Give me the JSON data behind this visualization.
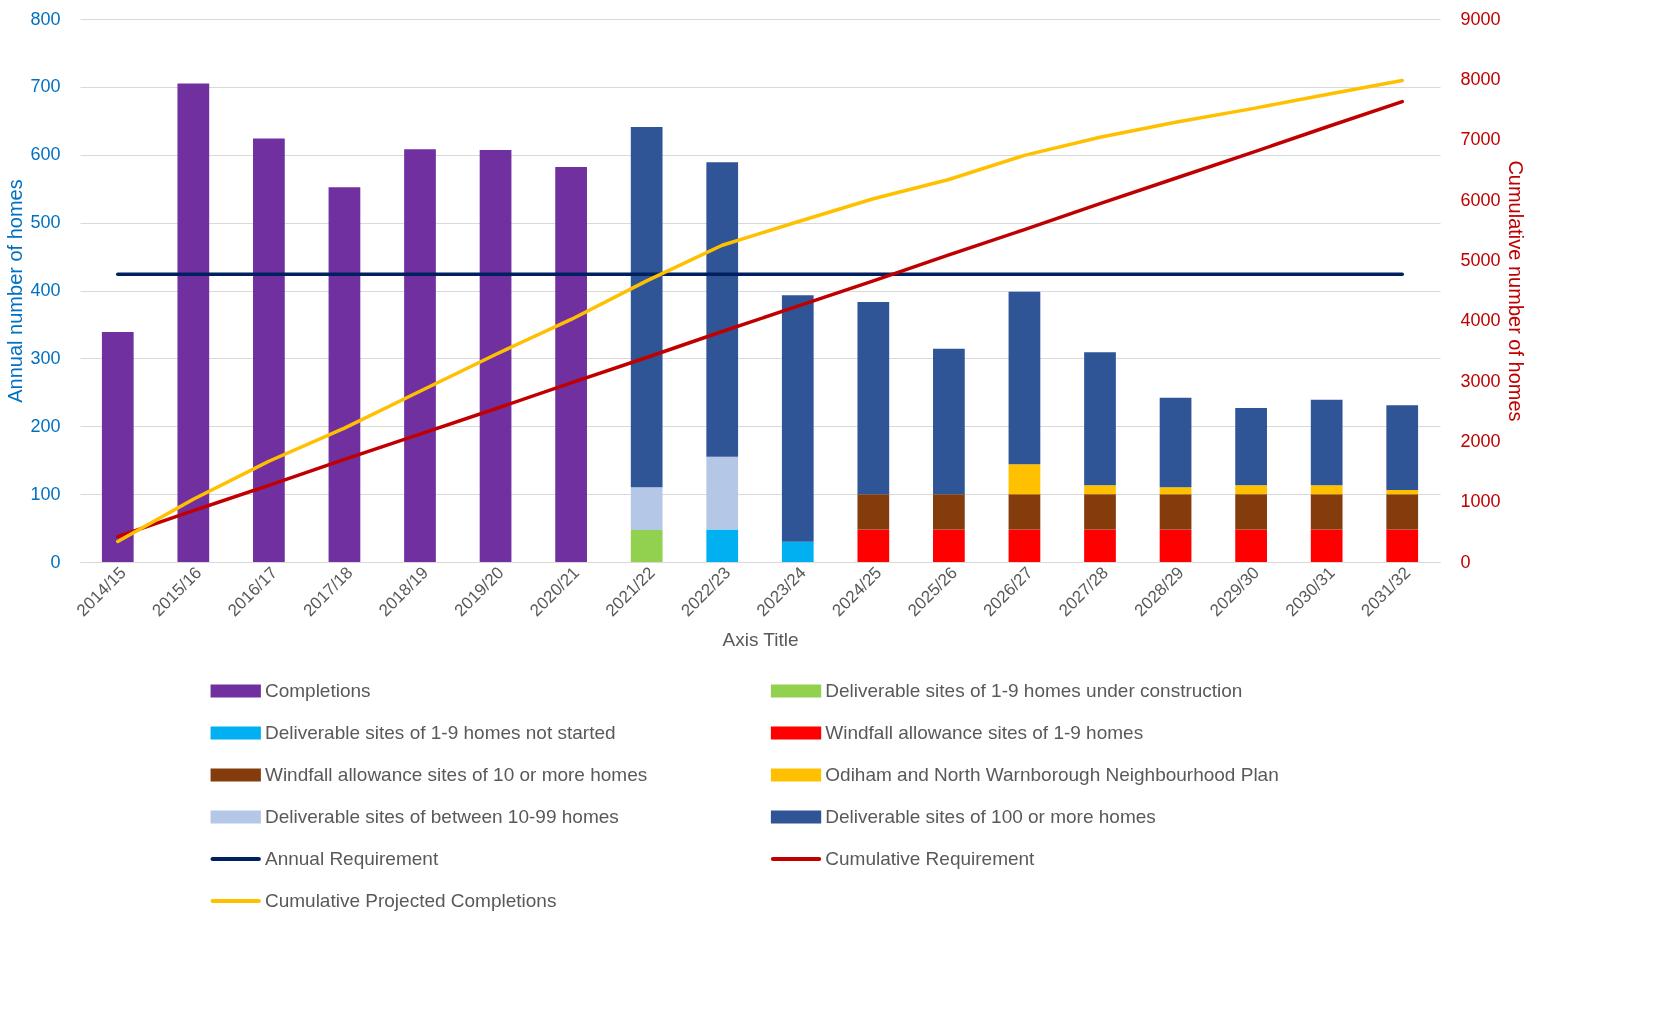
{
  "chart_data": {
    "type": "bar",
    "stacked": true,
    "xlabel": "Axis Title",
    "ylabel": "Annual number of homes",
    "y2label": "Cumulative number of homes",
    "categories": [
      "2014/15",
      "2015/16",
      "2016/17",
      "2017/18",
      "2018/19",
      "2019/20",
      "2020/21",
      "2021/22",
      "2022/23",
      "2023/24",
      "2024/25",
      "2025/26",
      "2026/27",
      "2027/28",
      "2028/29",
      "2029/30",
      "2030/31",
      "2031/32"
    ],
    "series": [
      {
        "name": "Completions",
        "color": "#7030a0",
        "values": [
          339,
          705,
          624,
          552,
          608,
          607,
          582,
          null,
          null,
          null,
          null,
          null,
          null,
          null,
          null,
          null,
          null,
          null
        ]
      },
      {
        "name": "Deliverable sites of 1-9 homes under construction",
        "color": "#92d050",
        "values": [
          null,
          null,
          null,
          null,
          null,
          null,
          null,
          47,
          null,
          null,
          null,
          null,
          null,
          null,
          null,
          null,
          null,
          null
        ]
      },
      {
        "name": "Deliverable sites of 1-9 homes not started",
        "color": "#00b0f0",
        "values": [
          null,
          null,
          null,
          null,
          null,
          null,
          null,
          null,
          48,
          30,
          null,
          null,
          null,
          null,
          null,
          null,
          null,
          null
        ]
      },
      {
        "name": "Windfall allowance sites of 1-9 homes",
        "color": "#ff0000",
        "values": [
          null,
          null,
          null,
          null,
          null,
          null,
          null,
          null,
          null,
          null,
          48,
          48,
          48,
          48,
          48,
          48,
          48,
          48
        ]
      },
      {
        "name": "Windfall allowance sites of 10 or more homes",
        "color": "#843c0c",
        "values": [
          null,
          null,
          null,
          null,
          null,
          null,
          null,
          null,
          null,
          null,
          52,
          52,
          52,
          52,
          52,
          52,
          52,
          52
        ]
      },
      {
        "name": "Odiham and North Warnborough Neighbourhood Plan",
        "color": "#ffc000",
        "values": [
          null,
          null,
          null,
          null,
          null,
          null,
          null,
          null,
          null,
          null,
          null,
          null,
          44,
          13,
          10,
          13,
          13,
          6
        ]
      },
      {
        "name": "Deliverable sites of between 10-99 homes",
        "color": "#b4c7e7",
        "values": [
          null,
          null,
          null,
          null,
          null,
          null,
          null,
          63,
          107,
          null,
          null,
          null,
          null,
          null,
          null,
          null,
          null,
          null
        ]
      },
      {
        "name": "Deliverable sites of 100 or more homes",
        "color": "#2f5597",
        "values": [
          null,
          null,
          null,
          null,
          null,
          null,
          null,
          531,
          434,
          363,
          283,
          214,
          254,
          196,
          132,
          114,
          126,
          125
        ]
      },
      {
        "name": "Annual Requirement",
        "type": "line",
        "color": "#002060",
        "values": [
          424,
          424,
          424,
          424,
          424,
          424,
          424,
          424,
          424,
          424,
          424,
          424,
          424,
          424,
          424,
          424,
          424,
          424
        ]
      },
      {
        "name": "Cumulative Requirement",
        "type": "line",
        "axis": "y2",
        "color": "#c00000",
        "values": [
          420,
          850,
          1270,
          1700,
          2120,
          2540,
          2970,
          3390,
          3820,
          4240,
          4660,
          5090,
          5510,
          5940,
          6360,
          6780,
          7210,
          7630
        ]
      },
      {
        "name": "Cumulative Projected Completions",
        "type": "line",
        "axis": "y2",
        "color": "#ffc000",
        "values": [
          340,
          1040,
          1670,
          2220,
          2830,
          3440,
          4020,
          4660,
          5250,
          5640,
          6020,
          6340,
          6740,
          7040,
          7290,
          7510,
          7750,
          7980
        ]
      }
    ],
    "ylim": [
      0,
      800
    ],
    "yticks": [
      0,
      100,
      200,
      300,
      400,
      500,
      600,
      700,
      800
    ],
    "y2lim": [
      0,
      9000
    ],
    "y2ticks": [
      0,
      1000,
      2000,
      3000,
      4000,
      5000,
      6000,
      7000,
      8000,
      9000
    ],
    "grid": "y",
    "legend": "bottom",
    "line_style": "solid",
    "marker": "none"
  }
}
